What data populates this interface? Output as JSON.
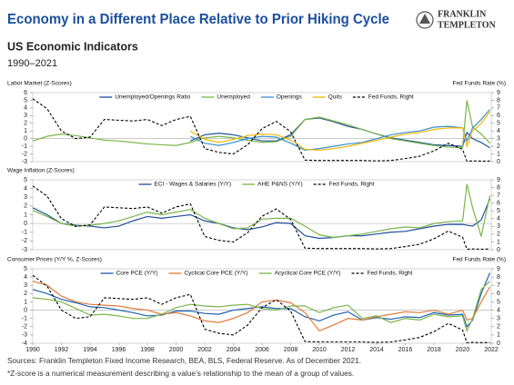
{
  "header": {
    "title": "Economy in a Different Place Relative to Prior Hiking Cycle",
    "subtitle": "US Economic Indicators",
    "period": "1990–2021",
    "logo_line1": "FRANKLIN",
    "logo_line2": "TEMPLETON"
  },
  "chart_data": [
    {
      "type": "line",
      "title": "Labor Market (Z-Scores)",
      "y2_label": "Fed Funds Rate (%)",
      "x": [
        1990,
        1991,
        1992,
        1993,
        1994,
        1995,
        1996,
        1997,
        1998,
        1999,
        2000,
        2001,
        2002,
        2003,
        2004,
        2005,
        2006,
        2007,
        2008,
        2009,
        2010,
        2011,
        2012,
        2013,
        2014,
        2015,
        2016,
        2017,
        2018,
        2019,
        2020,
        2020.3,
        2020.7,
        2021.3,
        2021.9
      ],
      "xlim": [
        1990,
        2022
      ],
      "ylim": [
        -3,
        6
      ],
      "yticks": [
        -3,
        -2,
        -1,
        0,
        1,
        2,
        3,
        4,
        5,
        6
      ],
      "y2lim": [
        0,
        9
      ],
      "y2ticks": [
        0,
        1,
        2,
        3,
        4,
        5,
        6,
        7,
        8,
        9
      ],
      "series": [
        {
          "name": "Unemployed/Openings Ratio",
          "color": "#1f4e9c",
          "values": [
            null,
            null,
            null,
            null,
            null,
            null,
            null,
            null,
            null,
            null,
            null,
            -0.3,
            0.5,
            0.7,
            0.5,
            0.1,
            -0.3,
            -0.3,
            0.5,
            2.5,
            2.7,
            2.2,
            1.6,
            1.2,
            0.6,
            0.1,
            -0.2,
            -0.5,
            -0.8,
            -0.9,
            -1.0,
            0.8,
            0,
            -0.5,
            -1.2
          ]
        },
        {
          "name": "Unemployed",
          "color": "#7ab648",
          "values": [
            -0.3,
            0.3,
            0.6,
            0.4,
            0.1,
            -0.2,
            -0.3,
            -0.5,
            -0.7,
            -0.8,
            -0.9,
            -0.5,
            0.1,
            0.3,
            0.1,
            -0.2,
            -0.5,
            -0.4,
            0.3,
            2.5,
            2.8,
            2.3,
            1.8,
            1.2,
            0.6,
            0.0,
            -0.3,
            -0.6,
            -0.9,
            -1.1,
            -1.2,
            5.0,
            1.5,
            0.6,
            -0.6
          ]
        },
        {
          "name": "Openings",
          "color": "#3a8fd6",
          "values": [
            null,
            null,
            null,
            null,
            null,
            null,
            null,
            null,
            null,
            null,
            null,
            0.3,
            -0.6,
            -0.9,
            -0.5,
            0.0,
            0.3,
            0.2,
            -0.6,
            -1.5,
            -1.3,
            -1.0,
            -0.7,
            -0.5,
            0.0,
            0.5,
            0.8,
            1.0,
            1.5,
            1.6,
            1.4,
            -0.3,
            1.4,
            2.5,
            3.8
          ]
        },
        {
          "name": "Quits",
          "color": "#f2b705",
          "values": [
            null,
            null,
            null,
            null,
            null,
            null,
            null,
            null,
            null,
            null,
            null,
            1.0,
            -0.1,
            -0.5,
            -0.1,
            0.4,
            0.6,
            0.5,
            -0.2,
            -1.4,
            -1.5,
            -1.3,
            -1.0,
            -0.6,
            -0.2,
            0.2,
            0.6,
            0.8,
            1.2,
            1.4,
            1.4,
            -1.0,
            1.0,
            2.0,
            3.5
          ]
        },
        {
          "name": "Fed Funds, Right",
          "color": "#000000",
          "style": "dashed",
          "axis": "y2",
          "values": [
            8.2,
            6.9,
            4.0,
            3.0,
            3.2,
            5.5,
            5.4,
            5.3,
            5.5,
            4.7,
            5.5,
            5.9,
            1.7,
            1.2,
            1.0,
            2.2,
            4.3,
            5.25,
            3.9,
            0.2,
            0.15,
            0.15,
            0.15,
            0.15,
            0.1,
            0.15,
            0.4,
            0.7,
            1.4,
            2.4,
            1.6,
            0.05,
            0.1,
            0.07,
            0.08
          ]
        }
      ]
    },
    {
      "type": "line",
      "title": "Wage Inflation (Z-Scores)",
      "x": [
        1990,
        1991,
        1992,
        1993,
        1994,
        1995,
        1996,
        1997,
        1998,
        1999,
        2000,
        2001,
        2002,
        2003,
        2004,
        2005,
        2006,
        2007,
        2008,
        2009,
        2010,
        2011,
        2012,
        2013,
        2014,
        2015,
        2016,
        2017,
        2018,
        2019,
        2020,
        2020.3,
        2020.7,
        2021.3,
        2021.9
      ],
      "xlim": [
        1990,
        2022
      ],
      "ylim": [
        -3,
        5
      ],
      "yticks": [
        -3,
        -2,
        -1,
        0,
        1,
        2,
        3,
        4,
        5
      ],
      "y2lim": [
        0,
        9
      ],
      "y2ticks": [
        0,
        1,
        2,
        3,
        4,
        5,
        6,
        7,
        8,
        9
      ],
      "series": [
        {
          "name": "ECI - Wages & Salaries (Y/Y)",
          "color": "#1f4e9c",
          "values": [
            1.8,
            1.0,
            0.0,
            -0.2,
            -0.3,
            -0.5,
            -0.3,
            0.3,
            0.8,
            0.6,
            0.8,
            1.0,
            0.3,
            0.0,
            -0.5,
            -0.7,
            -0.4,
            0.1,
            0.0,
            -1.4,
            -1.7,
            -1.6,
            -1.4,
            -1.4,
            -1.2,
            -1.0,
            -0.9,
            -0.6,
            -0.3,
            -0.1,
            -0.1,
            -0.2,
            -0.3,
            0.4,
            2.8
          ]
        },
        {
          "name": "AHE P&NS (Y/Y)",
          "color": "#7ab648",
          "values": [
            1.5,
            0.8,
            0.0,
            -0.3,
            -0.2,
            0.0,
            0.3,
            0.8,
            1.3,
            1.0,
            1.3,
            1.6,
            0.6,
            0.0,
            -0.6,
            -0.5,
            0.5,
            0.6,
            0.6,
            -0.3,
            -1.3,
            -1.6,
            -1.4,
            -1.2,
            -0.9,
            -0.6,
            -0.4,
            -0.5,
            0.0,
            0.2,
            0.3,
            4.5,
            1.8,
            -1.5,
            3.2
          ]
        },
        {
          "name": "Fed Funds, Right",
          "color": "#000000",
          "style": "dashed",
          "axis": "y2",
          "values": [
            8.2,
            6.9,
            4.0,
            3.0,
            3.2,
            5.5,
            5.4,
            5.3,
            5.5,
            4.7,
            5.5,
            5.9,
            1.7,
            1.2,
            1.0,
            2.2,
            4.3,
            5.25,
            3.9,
            0.2,
            0.15,
            0.15,
            0.15,
            0.15,
            0.1,
            0.15,
            0.4,
            0.7,
            1.4,
            2.4,
            1.6,
            0.05,
            0.1,
            0.07,
            0.08
          ]
        }
      ]
    },
    {
      "type": "line",
      "title": "Consumer Prices (Y/Y %, Z-Scores)",
      "y2_label": "Fed Funds Rate (%)",
      "x": [
        1990,
        1991,
        1992,
        1993,
        1994,
        1995,
        1996,
        1997,
        1998,
        1999,
        2000,
        2001,
        2002,
        2003,
        2004,
        2005,
        2006,
        2007,
        2008,
        2009,
        2010,
        2011,
        2012,
        2013,
        2014,
        2015,
        2016,
        2017,
        2018,
        2019,
        2020,
        2020.3,
        2020.7,
        2021.3,
        2021.9
      ],
      "xlim": [
        1990,
        2022
      ],
      "xticks": [
        1990,
        1992,
        1994,
        1996,
        1998,
        2000,
        2002,
        2004,
        2006,
        2008,
        2010,
        2012,
        2014,
        2016,
        2018,
        2020,
        2022
      ],
      "ylim": [
        -4,
        5
      ],
      "yticks": [
        -4,
        -3,
        -2,
        -1,
        0,
        1,
        2,
        3,
        4,
        5
      ],
      "y2lim": [
        0,
        9
      ],
      "y2ticks": [
        0,
        1,
        2,
        3,
        4,
        5,
        6,
        7,
        8,
        9
      ],
      "series": [
        {
          "name": "Core PCE (Y/Y)",
          "color": "#1f5fb4",
          "values": [
            2.5,
            2.0,
            1.3,
            0.9,
            0.4,
            0.3,
            0.0,
            -0.3,
            -0.7,
            -0.6,
            -0.1,
            -0.1,
            -0.4,
            -0.5,
            0.0,
            0.2,
            0.4,
            0.2,
            0.2,
            -0.8,
            -1.3,
            -0.6,
            -0.2,
            -1.2,
            -0.9,
            -1.1,
            -0.8,
            -0.9,
            -0.3,
            -0.6,
            -0.5,
            -2.0,
            -1.2,
            2.0,
            4.5
          ]
        },
        {
          "name": "Cyclical Core PCE (Y/Y)",
          "color": "#e07b39",
          "values": [
            3.5,
            3.0,
            1.7,
            1.0,
            0.7,
            0.6,
            0.5,
            0.2,
            0.0,
            -0.5,
            -0.3,
            -0.7,
            -1.3,
            -1.5,
            -1.0,
            -0.3,
            1.0,
            1.2,
            0.9,
            -0.3,
            -2.5,
            -1.8,
            -1.0,
            -1.2,
            -0.8,
            -0.5,
            -0.2,
            -0.3,
            0.0,
            -0.5,
            0.0,
            -1.2,
            -1.0,
            1.0,
            2.8
          ]
        },
        {
          "name": "Acyclical Core PCE (Y/Y)",
          "color": "#7ab648",
          "values": [
            1.5,
            1.3,
            1.0,
            0.2,
            -0.6,
            -0.5,
            -0.7,
            -1.0,
            -1.0,
            -0.5,
            0.3,
            0.7,
            0.5,
            0.4,
            0.6,
            0.7,
            0.2,
            0.0,
            0.5,
            0.5,
            -0.3,
            0.3,
            0.6,
            -1.0,
            -0.7,
            -1.5,
            -1.0,
            -1.2,
            -0.5,
            -0.8,
            -0.7,
            -2.5,
            -1.0,
            2.5,
            3.5
          ]
        },
        {
          "name": "Fed Funds, Right",
          "color": "#000000",
          "style": "dashed",
          "axis": "y2",
          "values": [
            8.2,
            6.9,
            4.0,
            3.0,
            3.2,
            5.5,
            5.4,
            5.3,
            5.5,
            4.7,
            5.5,
            5.9,
            1.7,
            1.2,
            1.0,
            2.2,
            4.3,
            5.25,
            3.9,
            0.2,
            0.15,
            0.15,
            0.15,
            0.15,
            0.1,
            0.15,
            0.4,
            0.7,
            1.4,
            2.4,
            1.6,
            0.05,
            0.1,
            0.07,
            0.08
          ]
        }
      ]
    }
  ],
  "footnotes": [
    "Sources: Franklin Templeton Fixed Income Research, BEA, BLS, Federal Reserve. As of December 2021.",
    "*Z-score is a numerical measurement describing a value’s relationship to the mean of a group of values."
  ]
}
